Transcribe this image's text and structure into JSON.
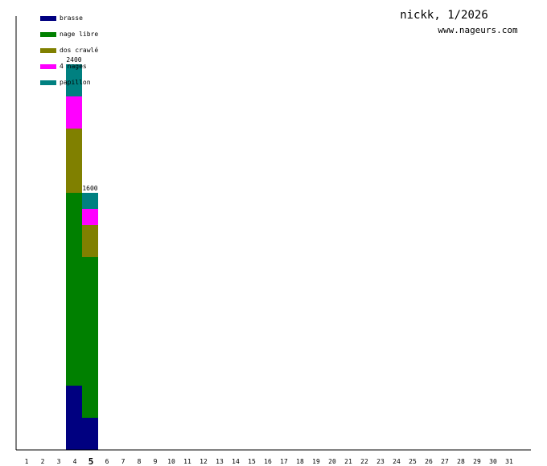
{
  "chart_data": {
    "type": "bar",
    "stacked": true,
    "title": "nickk, 1/2026",
    "subtitle": "www.nageurs.com",
    "categories": [
      "1",
      "2",
      "3",
      "4",
      "5",
      "6",
      "7",
      "8",
      "9",
      "10",
      "11",
      "12",
      "13",
      "14",
      "15",
      "16",
      "17",
      "18",
      "19",
      "20",
      "21",
      "22",
      "23",
      "24",
      "25",
      "26",
      "27",
      "28",
      "29",
      "30",
      "31"
    ],
    "highlighted_category": "5",
    "series": [
      {
        "name": "brasse",
        "color": "#000080",
        "values": [
          0,
          0,
          0,
          400,
          200,
          0,
          0,
          0,
          0,
          0,
          0,
          0,
          0,
          0,
          0,
          0,
          0,
          0,
          0,
          0,
          0,
          0,
          0,
          0,
          0,
          0,
          0,
          0,
          0,
          0,
          0
        ]
      },
      {
        "name": "nage libre",
        "color": "#008000",
        "values": [
          0,
          0,
          0,
          1200,
          1000,
          0,
          0,
          0,
          0,
          0,
          0,
          0,
          0,
          0,
          0,
          0,
          0,
          0,
          0,
          0,
          0,
          0,
          0,
          0,
          0,
          0,
          0,
          0,
          0,
          0,
          0
        ]
      },
      {
        "name": "dos crawlé",
        "color": "#808000",
        "values": [
          0,
          0,
          0,
          400,
          200,
          0,
          0,
          0,
          0,
          0,
          0,
          0,
          0,
          0,
          0,
          0,
          0,
          0,
          0,
          0,
          0,
          0,
          0,
          0,
          0,
          0,
          0,
          0,
          0,
          0,
          0
        ]
      },
      {
        "name": "4 nages",
        "color": "#ff00ff",
        "values": [
          0,
          0,
          0,
          200,
          100,
          0,
          0,
          0,
          0,
          0,
          0,
          0,
          0,
          0,
          0,
          0,
          0,
          0,
          0,
          0,
          0,
          0,
          0,
          0,
          0,
          0,
          0,
          0,
          0,
          0,
          0
        ]
      },
      {
        "name": "papillon",
        "color": "#008080",
        "values": [
          0,
          0,
          0,
          200,
          100,
          0,
          0,
          0,
          0,
          0,
          0,
          0,
          0,
          0,
          0,
          0,
          0,
          0,
          0,
          0,
          0,
          0,
          0,
          0,
          0,
          0,
          0,
          0,
          0,
          0,
          0
        ]
      }
    ],
    "totals": [
      {
        "category": "4",
        "label": "2400",
        "value": 2400
      },
      {
        "category": "5",
        "label": "1600",
        "value": 1600
      }
    ],
    "ylim": [
      0,
      2400
    ],
    "legend": "top-left",
    "grid": false
  }
}
